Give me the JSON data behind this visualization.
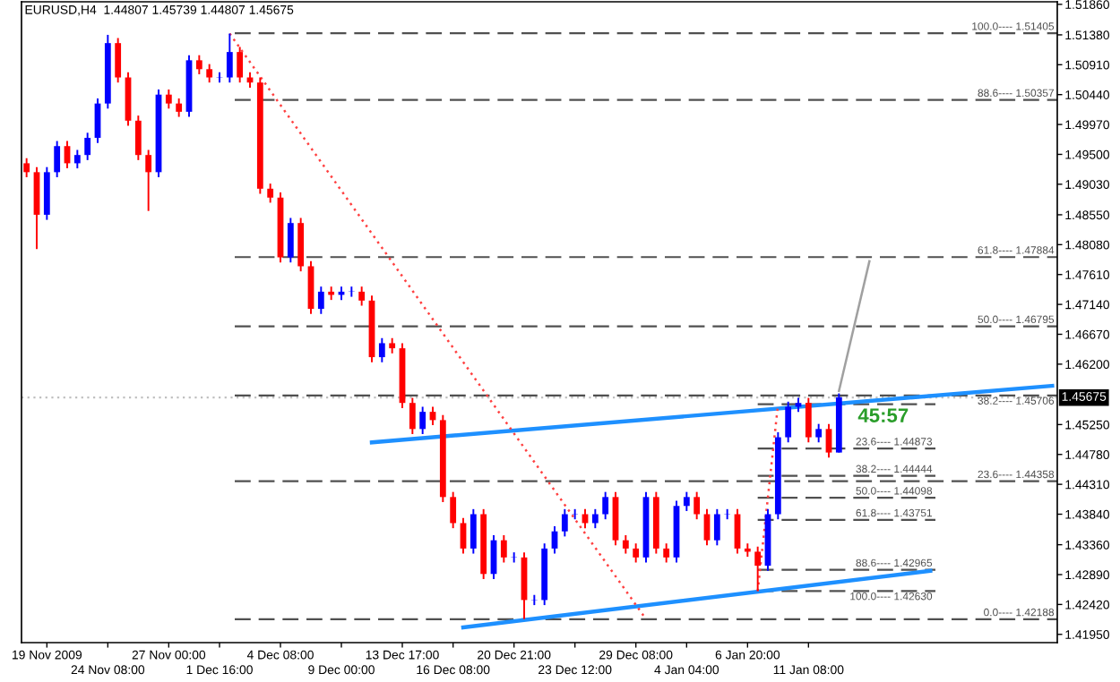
{
  "chart_data": {
    "type": "candlestick",
    "title": "EURUSD,H4  1.44807 1.45739 1.44807 1.45675",
    "categories": [
      null,
      null,
      "19 Nov 2009",
      null,
      null,
      null,
      null,
      null,
      "24 Nov 08:00",
      null,
      null,
      null,
      null,
      null,
      "27 Nov 00:00",
      null,
      null,
      null,
      null,
      "1 Dec 16:00",
      null,
      null,
      null,
      null,
      null,
      "4 Dec 08:00",
      null,
      null,
      null,
      null,
      null,
      "9 Dec 00:00",
      null,
      null,
      null,
      null,
      null,
      "13 Dec 17:00",
      null,
      null,
      null,
      null,
      "16 Dec 08:00",
      null,
      null,
      null,
      null,
      null,
      "20 Dec 21:00",
      null,
      null,
      null,
      null,
      null,
      "23 Dec 12:00",
      null,
      null,
      null,
      null,
      null,
      "29 Dec 08:00",
      null,
      null,
      null,
      null,
      "4 Jan 04:00",
      null,
      null,
      null,
      null,
      null,
      "6 Jan 20:00",
      null,
      null,
      null,
      null,
      null,
      "11 Jan 08:00",
      null,
      null,
      null,
      null,
      null,
      null,
      null,
      null,
      null,
      null,
      null,
      null,
      null,
      null,
      null,
      null,
      null,
      null,
      null,
      null,
      null,
      null,
      null,
      null
    ],
    "ohlc": [
      [
        1.4936,
        1.4944,
        1.4914,
        1.4922
      ],
      [
        1.4922,
        1.493,
        1.4801,
        1.4855
      ],
      [
        1.4855,
        1.493,
        1.4847,
        1.4922
      ],
      [
        1.4922,
        1.4971,
        1.4914,
        1.4963
      ],
      [
        1.4963,
        1.4971,
        1.4928,
        1.4936
      ],
      [
        1.4936,
        1.4957,
        1.4928,
        1.4949
      ],
      [
        1.4949,
        1.4984,
        1.4941,
        1.4976
      ],
      [
        1.4976,
        1.5038,
        1.4968,
        1.503
      ],
      [
        1.503,
        1.5138,
        1.5022,
        1.5125
      ],
      [
        1.5125,
        1.5133,
        1.5063,
        1.5071
      ],
      [
        1.5071,
        1.5079,
        1.4995,
        1.5003
      ],
      [
        1.5003,
        1.5011,
        1.4941,
        1.4949
      ],
      [
        1.4949,
        1.4957,
        1.4861,
        1.4922
      ],
      [
        1.4922,
        1.5052,
        1.4914,
        1.5044
      ],
      [
        1.5044,
        1.5052,
        1.5022,
        1.503
      ],
      [
        1.503,
        1.5038,
        1.5009,
        1.5017
      ],
      [
        1.5017,
        1.5106,
        1.5009,
        1.5098
      ],
      [
        1.5098,
        1.5106,
        1.5076,
        1.5084
      ],
      [
        1.5084,
        1.5092,
        1.5063,
        1.5071
      ],
      [
        1.5071,
        1.5079,
        1.5063,
        1.5071
      ],
      [
        1.5071,
        1.514,
        1.5063,
        1.5111
      ],
      [
        1.5111,
        1.5119,
        1.5063,
        1.5071
      ],
      [
        1.5071,
        1.5079,
        1.5055,
        1.5063
      ],
      [
        1.5063,
        1.5071,
        1.4888,
        1.4896
      ],
      [
        1.4896,
        1.4904,
        1.4874,
        1.4882
      ],
      [
        1.4882,
        1.489,
        1.478,
        1.4788
      ],
      [
        1.4788,
        1.485,
        1.478,
        1.4842
      ],
      [
        1.4842,
        1.485,
        1.4766,
        1.4774
      ],
      [
        1.4774,
        1.4782,
        1.4699,
        1.4707
      ],
      [
        1.4707,
        1.4742,
        1.4699,
        1.4734
      ],
      [
        1.4734,
        1.4742,
        1.4721,
        1.4729
      ],
      [
        1.4729,
        1.4742,
        1.4721,
        1.4734
      ],
      [
        1.4734,
        1.4742,
        1.4726,
        1.4734
      ],
      [
        1.4734,
        1.4742,
        1.4712,
        1.472
      ],
      [
        1.472,
        1.4728,
        1.4623,
        1.4631
      ],
      [
        1.4631,
        1.4661,
        1.4623,
        1.4653
      ],
      [
        1.4653,
        1.4661,
        1.4637,
        1.4645
      ],
      [
        1.4645,
        1.4653,
        1.4551,
        1.4559
      ],
      [
        1.4559,
        1.4567,
        1.451,
        1.4518
      ],
      [
        1.4518,
        1.4553,
        1.451,
        1.4545
      ],
      [
        1.4545,
        1.4553,
        1.4524,
        1.4532
      ],
      [
        1.4532,
        1.454,
        1.4403,
        1.4411
      ],
      [
        1.4411,
        1.4419,
        1.4362,
        1.437
      ],
      [
        1.437,
        1.4378,
        1.4322,
        1.433
      ],
      [
        1.433,
        1.4392,
        1.4322,
        1.4384
      ],
      [
        1.4384,
        1.4392,
        1.4282,
        1.429
      ],
      [
        1.429,
        1.4351,
        1.4282,
        1.4343
      ],
      [
        1.4343,
        1.4351,
        1.4308,
        1.4316
      ],
      [
        1.4316,
        1.4324,
        1.4308,
        1.4316
      ],
      [
        1.4316,
        1.4324,
        1.4219,
        1.4249
      ],
      [
        1.4249,
        1.4257,
        1.4241,
        1.4249
      ],
      [
        1.4249,
        1.4338,
        1.4241,
        1.433
      ],
      [
        1.433,
        1.4365,
        1.4322,
        1.4357
      ],
      [
        1.4357,
        1.4392,
        1.4349,
        1.4384
      ],
      [
        1.4384,
        1.4392,
        1.4376,
        1.4384
      ],
      [
        1.4384,
        1.4392,
        1.4362,
        1.437
      ],
      [
        1.437,
        1.4392,
        1.4362,
        1.4384
      ],
      [
        1.4384,
        1.4419,
        1.4376,
        1.4411
      ],
      [
        1.4411,
        1.4419,
        1.4335,
        1.4343
      ],
      [
        1.4343,
        1.4351,
        1.4322,
        1.433
      ],
      [
        1.433,
        1.4338,
        1.4308,
        1.4316
      ],
      [
        1.4316,
        1.4419,
        1.4308,
        1.4411
      ],
      [
        1.4411,
        1.4419,
        1.4322,
        1.433
      ],
      [
        1.433,
        1.4338,
        1.4308,
        1.4316
      ],
      [
        1.4316,
        1.4405,
        1.4308,
        1.4397
      ],
      [
        1.4397,
        1.4419,
        1.4389,
        1.4411
      ],
      [
        1.4411,
        1.4419,
        1.4376,
        1.4384
      ],
      [
        1.4384,
        1.4392,
        1.4335,
        1.4343
      ],
      [
        1.4343,
        1.4392,
        1.4335,
        1.4384
      ],
      [
        1.4384,
        1.4392,
        1.4376,
        1.4384
      ],
      [
        1.4384,
        1.4392,
        1.4322,
        1.433
      ],
      [
        1.433,
        1.4338,
        1.4317,
        1.4325
      ],
      [
        1.4325,
        1.4333,
        1.4263,
        1.4303
      ],
      [
        1.4303,
        1.4392,
        1.4295,
        1.4384
      ],
      [
        1.4384,
        1.4513,
        1.4376,
        1.4505
      ],
      [
        1.4505,
        1.4561,
        1.4497,
        1.4553
      ],
      [
        1.4553,
        1.4567,
        1.4545,
        1.4559
      ],
      [
        1.4559,
        1.4567,
        1.4497,
        1.4505
      ],
      [
        1.4505,
        1.4526,
        1.4497,
        1.4518
      ],
      [
        1.4518,
        1.4526,
        1.4473,
        1.4481
      ],
      [
        1.4481,
        1.4574,
        1.4481,
        1.4568
      ],
      null,
      null,
      null,
      null,
      null,
      null,
      null,
      null,
      null,
      null,
      null,
      null,
      null,
      null,
      null,
      null,
      null,
      null,
      null,
      null,
      null
    ],
    "colors": [
      "#ff0000",
      "#ff0000",
      "#0000ff",
      "#0000ff",
      "#ff0000",
      "#0000ff",
      "#0000ff",
      "#0000ff",
      "#0000ff",
      "#ff0000",
      "#ff0000",
      "#ff0000",
      "#ff0000",
      "#0000ff",
      "#ff0000",
      "#ff0000",
      "#0000ff",
      "#ff0000",
      "#ff0000",
      "#0000ff",
      "#0000ff",
      "#ff0000",
      "#ff0000",
      "#ff0000",
      "#ff0000",
      "#ff0000",
      "#0000ff",
      "#ff0000",
      "#ff0000",
      "#0000ff",
      "#ff0000",
      "#0000ff",
      "#0000ff",
      "#ff0000",
      "#ff0000",
      "#0000ff",
      "#ff0000",
      "#ff0000",
      "#ff0000",
      "#0000ff",
      "#ff0000",
      "#ff0000",
      "#ff0000",
      "#ff0000",
      "#0000ff",
      "#ff0000",
      "#0000ff",
      "#ff0000",
      "#0000ff",
      "#ff0000",
      "#0000ff",
      "#0000ff",
      "#0000ff",
      "#0000ff",
      "#0000ff",
      "#ff0000",
      "#0000ff",
      "#0000ff",
      "#ff0000",
      "#ff0000",
      "#ff0000",
      "#0000ff",
      "#ff0000",
      "#ff0000",
      "#0000ff",
      "#0000ff",
      "#ff0000",
      "#ff0000",
      "#0000ff",
      "#0000ff",
      "#ff0000",
      "#ff0000",
      "#ff0000",
      "#0000ff",
      "#0000ff",
      "#0000ff",
      "#0000ff",
      "#ff0000",
      "#0000ff",
      "#ff0000",
      "#0000ff",
      null,
      null,
      null,
      null,
      null,
      null,
      null,
      null,
      null,
      null,
      null,
      null,
      null,
      null,
      null,
      null,
      null,
      null,
      null,
      null,
      null
    ],
    "series": [
      {
        "type": "line",
        "color": "#1e90ff",
        "line_style": "solid",
        "values": [
          null,
          null,
          null,
          null,
          null,
          null,
          null,
          null,
          null,
          null,
          null,
          null,
          null,
          null,
          null,
          null,
          null,
          null,
          null,
          null,
          null,
          null,
          null,
          null,
          null,
          null,
          null,
          null,
          null,
          null,
          null,
          null,
          null,
          null,
          1.4497,
          null,
          null,
          null,
          null,
          null,
          null,
          null,
          null,
          null,
          null,
          null,
          null,
          null,
          null,
          null,
          null,
          null,
          null,
          null,
          null,
          null,
          null,
          null,
          null,
          null,
          null,
          null,
          null,
          null,
          null,
          null,
          null,
          null,
          null,
          null,
          null,
          null,
          null,
          null,
          null,
          null,
          null,
          null,
          null,
          null,
          null,
          null,
          null,
          null,
          null,
          null,
          null,
          null,
          null,
          null,
          null,
          null,
          null,
          null,
          null,
          null,
          null,
          null,
          null,
          null,
          null,
          1.4586
        ]
      },
      {
        "type": "line",
        "color": "#1e90ff",
        "line_style": "solid",
        "values": [
          null,
          null,
          null,
          null,
          null,
          null,
          null,
          null,
          null,
          null,
          null,
          null,
          null,
          null,
          null,
          null,
          null,
          null,
          null,
          null,
          null,
          null,
          null,
          null,
          null,
          null,
          null,
          null,
          null,
          null,
          null,
          null,
          null,
          null,
          null,
          null,
          null,
          null,
          null,
          null,
          null,
          null,
          null,
          1.4206,
          null,
          null,
          null,
          null,
          null,
          null,
          null,
          null,
          null,
          null,
          null,
          null,
          null,
          null,
          null,
          null,
          null,
          null,
          null,
          null,
          null,
          null,
          null,
          null,
          null,
          null,
          null,
          null,
          null,
          null,
          null,
          null,
          null,
          null,
          null,
          null,
          null,
          null,
          null,
          null,
          null,
          null,
          null,
          null,
          null,
          1.4295,
          null,
          null,
          null,
          null,
          null,
          null,
          null,
          null,
          null,
          null,
          null,
          null
        ]
      },
      {
        "type": "line",
        "color": "#ff4040",
        "line_style": "dotted",
        "values": [
          null,
          null,
          null,
          null,
          null,
          null,
          null,
          null,
          null,
          null,
          null,
          null,
          null,
          null,
          null,
          null,
          null,
          null,
          null,
          null,
          1.514,
          null,
          null,
          null,
          null,
          null,
          null,
          null,
          null,
          null,
          null,
          null,
          null,
          null,
          null,
          null,
          null,
          null,
          null,
          null,
          null,
          null,
          null,
          null,
          null,
          null,
          null,
          null,
          null,
          null,
          null,
          null,
          null,
          null,
          null,
          null,
          null,
          null,
          null,
          null,
          null,
          1.4219,
          null,
          null,
          null,
          null,
          null,
          null,
          null,
          null,
          null,
          null,
          null,
          null,
          null,
          null,
          null,
          null,
          null,
          null,
          null,
          null,
          null,
          null,
          null,
          null,
          null,
          null,
          null,
          null,
          null,
          null,
          null,
          null,
          null,
          null,
          null,
          null,
          null,
          null,
          null,
          null
        ]
      },
      {
        "type": "line",
        "color": "#ff4040",
        "line_style": "dotted",
        "values": [
          null,
          null,
          null,
          null,
          null,
          null,
          null,
          null,
          null,
          null,
          null,
          null,
          null,
          null,
          null,
          null,
          null,
          null,
          null,
          null,
          null,
          null,
          null,
          null,
          null,
          null,
          null,
          null,
          null,
          null,
          null,
          null,
          null,
          null,
          null,
          null,
          null,
          null,
          null,
          null,
          null,
          null,
          null,
          null,
          null,
          null,
          null,
          null,
          null,
          null,
          null,
          null,
          null,
          null,
          null,
          null,
          null,
          null,
          null,
          null,
          null,
          null,
          null,
          null,
          null,
          null,
          null,
          null,
          null,
          null,
          null,
          null,
          1.4263,
          null,
          1.4557,
          null,
          null,
          null,
          null,
          null,
          null,
          null,
          null,
          null,
          null,
          null,
          null,
          null,
          null,
          null,
          null,
          null,
          null,
          null,
          null,
          null,
          null,
          null,
          null,
          null,
          null,
          null
        ]
      },
      {
        "type": "line",
        "color": "#a0a0a0",
        "line_style": "solid",
        "values": [
          null,
          null,
          null,
          null,
          null,
          null,
          null,
          null,
          null,
          null,
          null,
          null,
          null,
          null,
          null,
          null,
          null,
          null,
          null,
          null,
          null,
          null,
          null,
          null,
          null,
          null,
          null,
          null,
          null,
          null,
          null,
          null,
          null,
          null,
          null,
          null,
          null,
          null,
          null,
          null,
          null,
          null,
          null,
          null,
          null,
          null,
          null,
          null,
          null,
          null,
          null,
          null,
          null,
          null,
          null,
          null,
          null,
          null,
          null,
          null,
          null,
          null,
          null,
          null,
          null,
          null,
          null,
          null,
          null,
          null,
          null,
          null,
          null,
          null,
          null,
          null,
          null,
          null,
          null,
          null,
          1.4578,
          null,
          null,
          1.4782,
          null,
          null,
          null,
          null,
          null,
          null,
          null,
          null,
          null,
          null,
          null,
          null,
          null,
          null,
          null,
          null,
          null,
          null
        ]
      }
    ],
    "ylim": [
      1.4182,
      1.519
    ],
    "yticks": [
      {
        "value": 1.5186,
        "label": "1.51860"
      },
      {
        "value": 1.5138,
        "label": "1.51380"
      },
      {
        "value": 1.5091,
        "label": "1.50910"
      },
      {
        "value": 1.5044,
        "label": "1.50440"
      },
      {
        "value": 1.4997,
        "label": "1.49970"
      },
      {
        "value": 1.495,
        "label": "1.49500"
      },
      {
        "value": 1.4903,
        "label": "1.49030"
      },
      {
        "value": 1.4855,
        "label": "1.48550"
      },
      {
        "value": 1.4808,
        "label": "1.48080"
      },
      {
        "value": 1.4761,
        "label": "1.47610"
      },
      {
        "value": 1.4714,
        "label": "1.47140"
      },
      {
        "value": 1.4667,
        "label": "1.46670"
      },
      {
        "value": 1.462,
        "label": "1.46200"
      },
      {
        "value": 1.4525,
        "label": "1.45250"
      },
      {
        "value": 1.4478,
        "label": "1.44780"
      },
      {
        "value": 1.4431,
        "label": "1.44310"
      },
      {
        "value": 1.4384,
        "label": "1.43840"
      },
      {
        "value": 1.4336,
        "label": "1.43360"
      },
      {
        "value": 1.4289,
        "label": "1.42890"
      },
      {
        "value": 1.4242,
        "label": "1.42420"
      },
      {
        "value": 1.4195,
        "label": "1.41950"
      }
    ],
    "ref_lines": [
      {
        "axis": "y",
        "value": 1.51405,
        "color": "#505050",
        "line_style": "dashed"
      },
      {
        "axis": "y",
        "value": 1.50357,
        "color": "#505050",
        "line_style": "dashed"
      },
      {
        "axis": "y",
        "value": 1.47884,
        "color": "#505050",
        "line_style": "dashed"
      },
      {
        "axis": "y",
        "value": 1.46795,
        "color": "#505050",
        "line_style": "dashed"
      },
      {
        "axis": "y",
        "value": 1.45706,
        "color": "#505050",
        "line_style": "dashed"
      },
      {
        "axis": "y",
        "value": 1.44358,
        "color": "#505050",
        "line_style": "dashed"
      },
      {
        "axis": "y",
        "value": 1.42188,
        "color": "#505050",
        "line_style": "dashed"
      },
      {
        "axis": "y",
        "value": 1.4557,
        "color": "#505050",
        "line_style": "dashed"
      },
      {
        "axis": "y",
        "value": 1.44873,
        "color": "#505050",
        "line_style": "dashed"
      },
      {
        "axis": "y",
        "value": 1.44444,
        "color": "#505050",
        "line_style": "dashed"
      },
      {
        "axis": "y",
        "value": 1.44098,
        "color": "#505050",
        "line_style": "dashed"
      },
      {
        "axis": "y",
        "value": 1.43751,
        "color": "#505050",
        "line_style": "dashed"
      },
      {
        "axis": "y",
        "value": 1.42965,
        "color": "#505050",
        "line_style": "dashed"
      },
      {
        "axis": "y",
        "value": 1.4263,
        "color": "#505050",
        "line_style": "dashed"
      },
      {
        "axis": "y",
        "value": 1.45675,
        "label": "1.45675",
        "color": "#c0c0c0",
        "line_style": "dotted"
      }
    ],
    "annotations": [
      {
        "text": "100.0---- 1.51405",
        "y": 1.51405
      },
      {
        "text": "88.6---- 1.50357",
        "y": 1.50357
      },
      {
        "text": "61.8---- 1.47884",
        "y": 1.47884
      },
      {
        "text": "50.0---- 1.46795",
        "y": 1.46795
      },
      {
        "text": "38.2---- 1.45706",
        "y": 1.45706
      },
      {
        "text": "23.6---- 1.44358",
        "y": 1.44358
      },
      {
        "text": "0.0---- 1.42188",
        "y": 1.42188
      },
      {
        "text": "23.6---- 1.44873",
        "y": 1.44873
      },
      {
        "text": "38.2---- 1.44444",
        "y": 1.44444
      },
      {
        "text": "50.0---- 1.44098",
        "y": 1.44098
      },
      {
        "text": "61.8---- 1.43751",
        "y": 1.43751
      },
      {
        "text": "88.6---- 1.42965",
        "y": 1.42965
      },
      {
        "text": "100.0---- 1.42630",
        "y": 1.4263
      },
      "45:57"
    ],
    "grid": false
  }
}
